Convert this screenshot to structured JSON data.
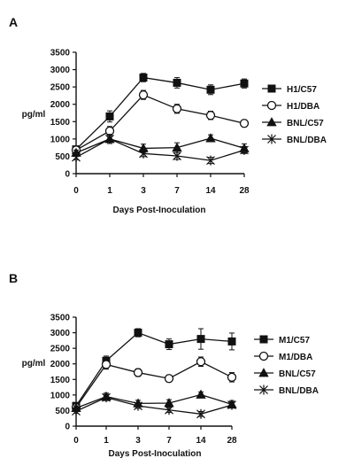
{
  "figure": {
    "panels": [
      {
        "letter": "A"
      },
      {
        "letter": "B"
      }
    ]
  },
  "chart_data": [
    {
      "type": "line",
      "panel": "A",
      "categories": [
        "0",
        "1",
        "3",
        "7",
        "14",
        "28"
      ],
      "yticks": [
        "0",
        "500",
        "1000",
        "1500",
        "2000",
        "2500",
        "3000",
        "3500"
      ],
      "ylim": [
        0,
        3500
      ],
      "ylabel": "pg/ml",
      "xlabel": "Days Post-Inoculation",
      "legend_position": "right",
      "series": [
        {
          "name": "H1/C57",
          "marker": "filled-square",
          "values": [
            700,
            1650,
            2770,
            2620,
            2420,
            2600
          ],
          "errors": [
            90,
            160,
            120,
            150,
            140,
            130
          ]
        },
        {
          "name": "H1/DBA",
          "marker": "open-circle",
          "values": [
            680,
            1230,
            2270,
            1870,
            1680,
            1450
          ],
          "errors": [
            90,
            130,
            130,
            130,
            120,
            100
          ]
        },
        {
          "name": "BNL/C57",
          "marker": "filled-triangle",
          "values": [
            600,
            1000,
            730,
            750,
            1020,
            730
          ],
          "errors": [
            80,
            130,
            120,
            140,
            100,
            130
          ]
        },
        {
          "name": "BNL/DBA",
          "marker": "asterisk",
          "values": [
            470,
            1000,
            580,
            510,
            380,
            680
          ],
          "errors": [
            70,
            130,
            90,
            100,
            90,
            100
          ]
        }
      ]
    },
    {
      "type": "line",
      "panel": "B",
      "categories": [
        "0",
        "1",
        "3",
        "7",
        "14",
        "28"
      ],
      "yticks": [
        "0",
        "500",
        "1000",
        "1500",
        "2000",
        "2500",
        "3000",
        "3500"
      ],
      "ylim": [
        0,
        3500
      ],
      "ylabel": "pg/ml",
      "xlabel": "Days Post-Inoculation",
      "legend_position": "right",
      "series": [
        {
          "name": "M1/C57",
          "marker": "filled-square",
          "values": [
            650,
            2100,
            3000,
            2630,
            2800,
            2720
          ],
          "errors": [
            80,
            150,
            130,
            170,
            330,
            270
          ]
        },
        {
          "name": "M1/DBA",
          "marker": "open-circle",
          "values": [
            600,
            1980,
            1720,
            1530,
            2070,
            1570
          ],
          "errors": [
            80,
            150,
            120,
            110,
            150,
            150
          ]
        },
        {
          "name": "BNL/C57",
          "marker": "filled-triangle",
          "values": [
            580,
            950,
            730,
            740,
            1010,
            700
          ],
          "errors": [
            70,
            110,
            100,
            110,
            90,
            120
          ]
        },
        {
          "name": "BNL/DBA",
          "marker": "asterisk",
          "values": [
            480,
            920,
            650,
            520,
            390,
            680
          ],
          "errors": [
            70,
            100,
            80,
            80,
            80,
            100
          ]
        }
      ]
    }
  ]
}
